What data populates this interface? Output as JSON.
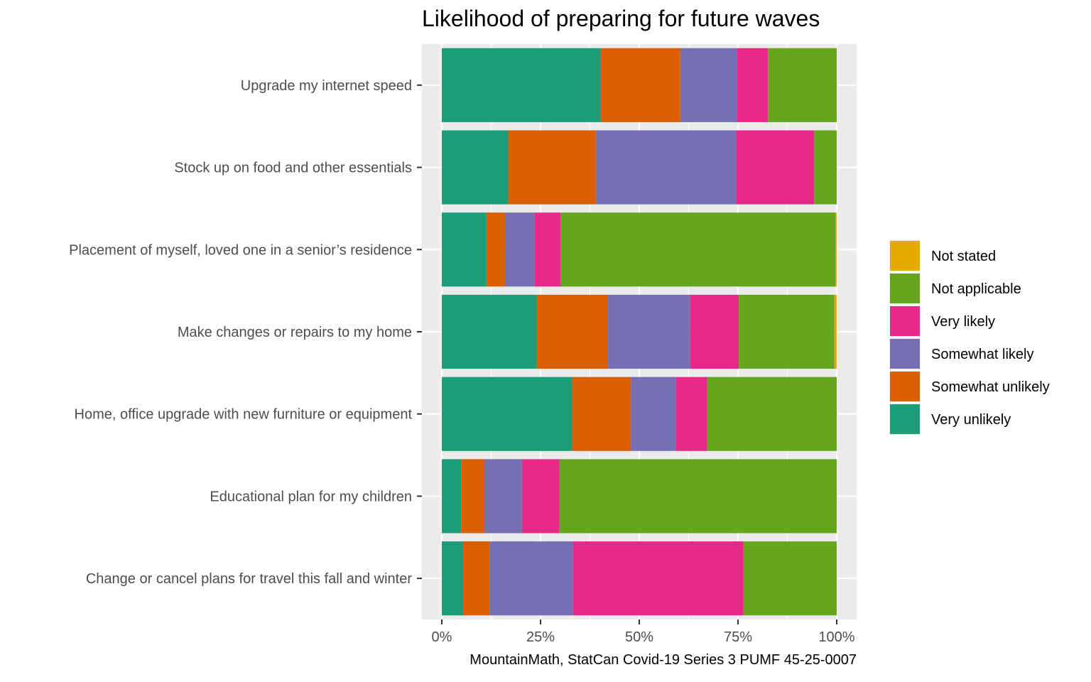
{
  "chart_data": {
    "type": "bar",
    "orientation": "horizontal",
    "stacked": true,
    "title": "Likelihood of preparing for future waves",
    "caption": "MountainMath, StatCan Covid-19 Series 3 PUMF 45-25-0007",
    "xlabel": "",
    "ylabel": "",
    "xlim": [
      0,
      1
    ],
    "x_ticks": [
      "0%",
      "25%",
      "50%",
      "75%",
      "100%"
    ],
    "x_tick_values": [
      0,
      0.25,
      0.5,
      0.75,
      1.0
    ],
    "grid": true,
    "legend_position": "right",
    "categories": [
      "Upgrade my internet speed",
      "Stock up on food and other essentials",
      "Placement of myself, loved one in a senior’s residence",
      "Make changes or repairs to my home",
      "Home, office upgrade with new furniture or equipment",
      "Educational plan for my children",
      "Change or cancel plans for travel this fall and winter"
    ],
    "series": [
      {
        "name": "Very unlikely",
        "color": "#1b9e77",
        "values": [
          0.403,
          0.168,
          0.113,
          0.24,
          0.33,
          0.049,
          0.054
        ]
      },
      {
        "name": "Somewhat unlikely",
        "color": "#d95f02",
        "values": [
          0.201,
          0.222,
          0.047,
          0.181,
          0.149,
          0.059,
          0.067
        ]
      },
      {
        "name": "Somewhat likely",
        "color": "#7570b3",
        "values": [
          0.143,
          0.355,
          0.075,
          0.208,
          0.114,
          0.095,
          0.211
        ]
      },
      {
        "name": "Very likely",
        "color": "#e7298a",
        "values": [
          0.079,
          0.198,
          0.066,
          0.123,
          0.079,
          0.095,
          0.432
        ]
      },
      {
        "name": "Not applicable",
        "color": "#66a61e",
        "values": [
          0.174,
          0.057,
          0.696,
          0.242,
          0.328,
          0.702,
          0.236
        ]
      },
      {
        "name": "Not stated",
        "color": "#e6ab02",
        "values": [
          0.0,
          0.0,
          0.003,
          0.006,
          0.0,
          0.0,
          0.0
        ]
      }
    ],
    "legend_order": [
      "Not stated",
      "Not applicable",
      "Very likely",
      "Somewhat likely",
      "Somewhat unlikely",
      "Very unlikely"
    ]
  }
}
